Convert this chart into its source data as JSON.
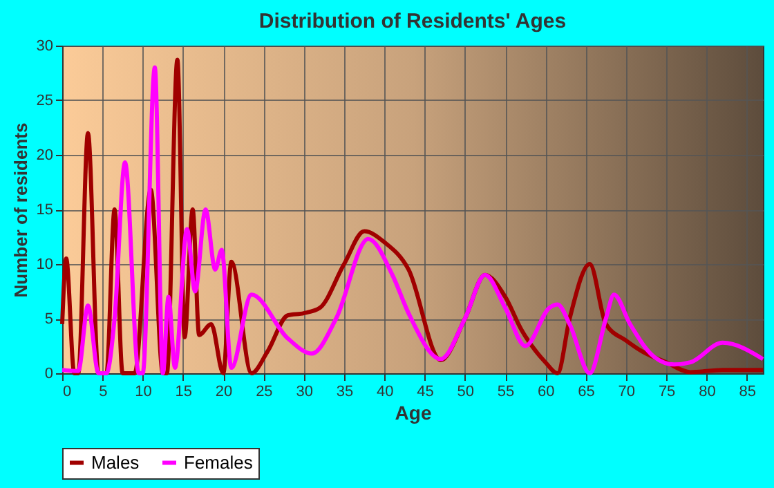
{
  "chart_data": {
    "type": "line",
    "title": "Distribution of Residents' Ages",
    "xlabel": "Age",
    "ylabel": "Number of residents",
    "xlim": [
      0,
      87
    ],
    "xticks": [
      0,
      5,
      10,
      15,
      20,
      25,
      30,
      35,
      40,
      45,
      50,
      55,
      60,
      65,
      70,
      75,
      80,
      85
    ],
    "ylim": [
      0,
      30
    ],
    "yticks": [
      0,
      5,
      10,
      15,
      20,
      25,
      30
    ],
    "grid": true,
    "legend": "bottom",
    "marker": "none",
    "line_style": "solid",
    "series": [
      {
        "name": "Males",
        "color": "#a00000",
        "x": [
          0,
          0.5,
          1.5,
          2,
          3.2,
          4.5,
          5.5,
          6.5,
          7.5,
          9,
          11,
          12.5,
          13,
          14.3,
          15.2,
          16.2,
          17,
          18.5,
          20,
          21,
          23.5,
          25.5,
          28,
          30,
          32,
          35,
          37.5,
          40,
          43,
          47,
          50,
          52.5,
          55,
          57,
          60,
          61.5,
          63,
          65.5,
          67.5,
          70,
          72,
          75,
          78,
          82,
          87
        ],
        "values": [
          4.5,
          10.5,
          0,
          0,
          22,
          0,
          0,
          15,
          0,
          0,
          16.8,
          0,
          0,
          28.7,
          3.3,
          15,
          3.5,
          4.5,
          0,
          10.2,
          0,
          2,
          5.3,
          5.5,
          6,
          10,
          13,
          12,
          9.5,
          1.2,
          5,
          9,
          7,
          4,
          1,
          0,
          5,
          10,
          4.5,
          3,
          2,
          1,
          0.1,
          0.3,
          0.3
        ]
      },
      {
        "name": "Females",
        "color": "#ff00ff",
        "x": [
          0,
          2,
          3.2,
          4.5,
          5.5,
          6.5,
          7.8,
          9.5,
          10,
          11.5,
          12.5,
          13.2,
          14,
          15.5,
          16.5,
          17.8,
          19,
          19.8,
          21,
          23.5,
          28,
          31,
          34,
          38,
          41,
          43,
          47,
          50,
          52.5,
          55,
          57.5,
          60.5,
          61.5,
          63,
          65.5,
          67.5,
          68.5,
          70.5,
          73.5,
          76,
          78,
          82,
          87
        ],
        "values": [
          0.3,
          0.2,
          6.2,
          0,
          0,
          5,
          19.3,
          0,
          0,
          28,
          0,
          7,
          0.5,
          13.2,
          7.5,
          15,
          9.5,
          11.3,
          0.5,
          7.2,
          3.2,
          1.8,
          5,
          12.3,
          9,
          5.5,
          1.3,
          5,
          9,
          6,
          2.5,
          6,
          6.3,
          4.5,
          0,
          5,
          7.2,
          4.5,
          1.5,
          0.8,
          1,
          2.8,
          1.3
        ]
      }
    ]
  }
}
